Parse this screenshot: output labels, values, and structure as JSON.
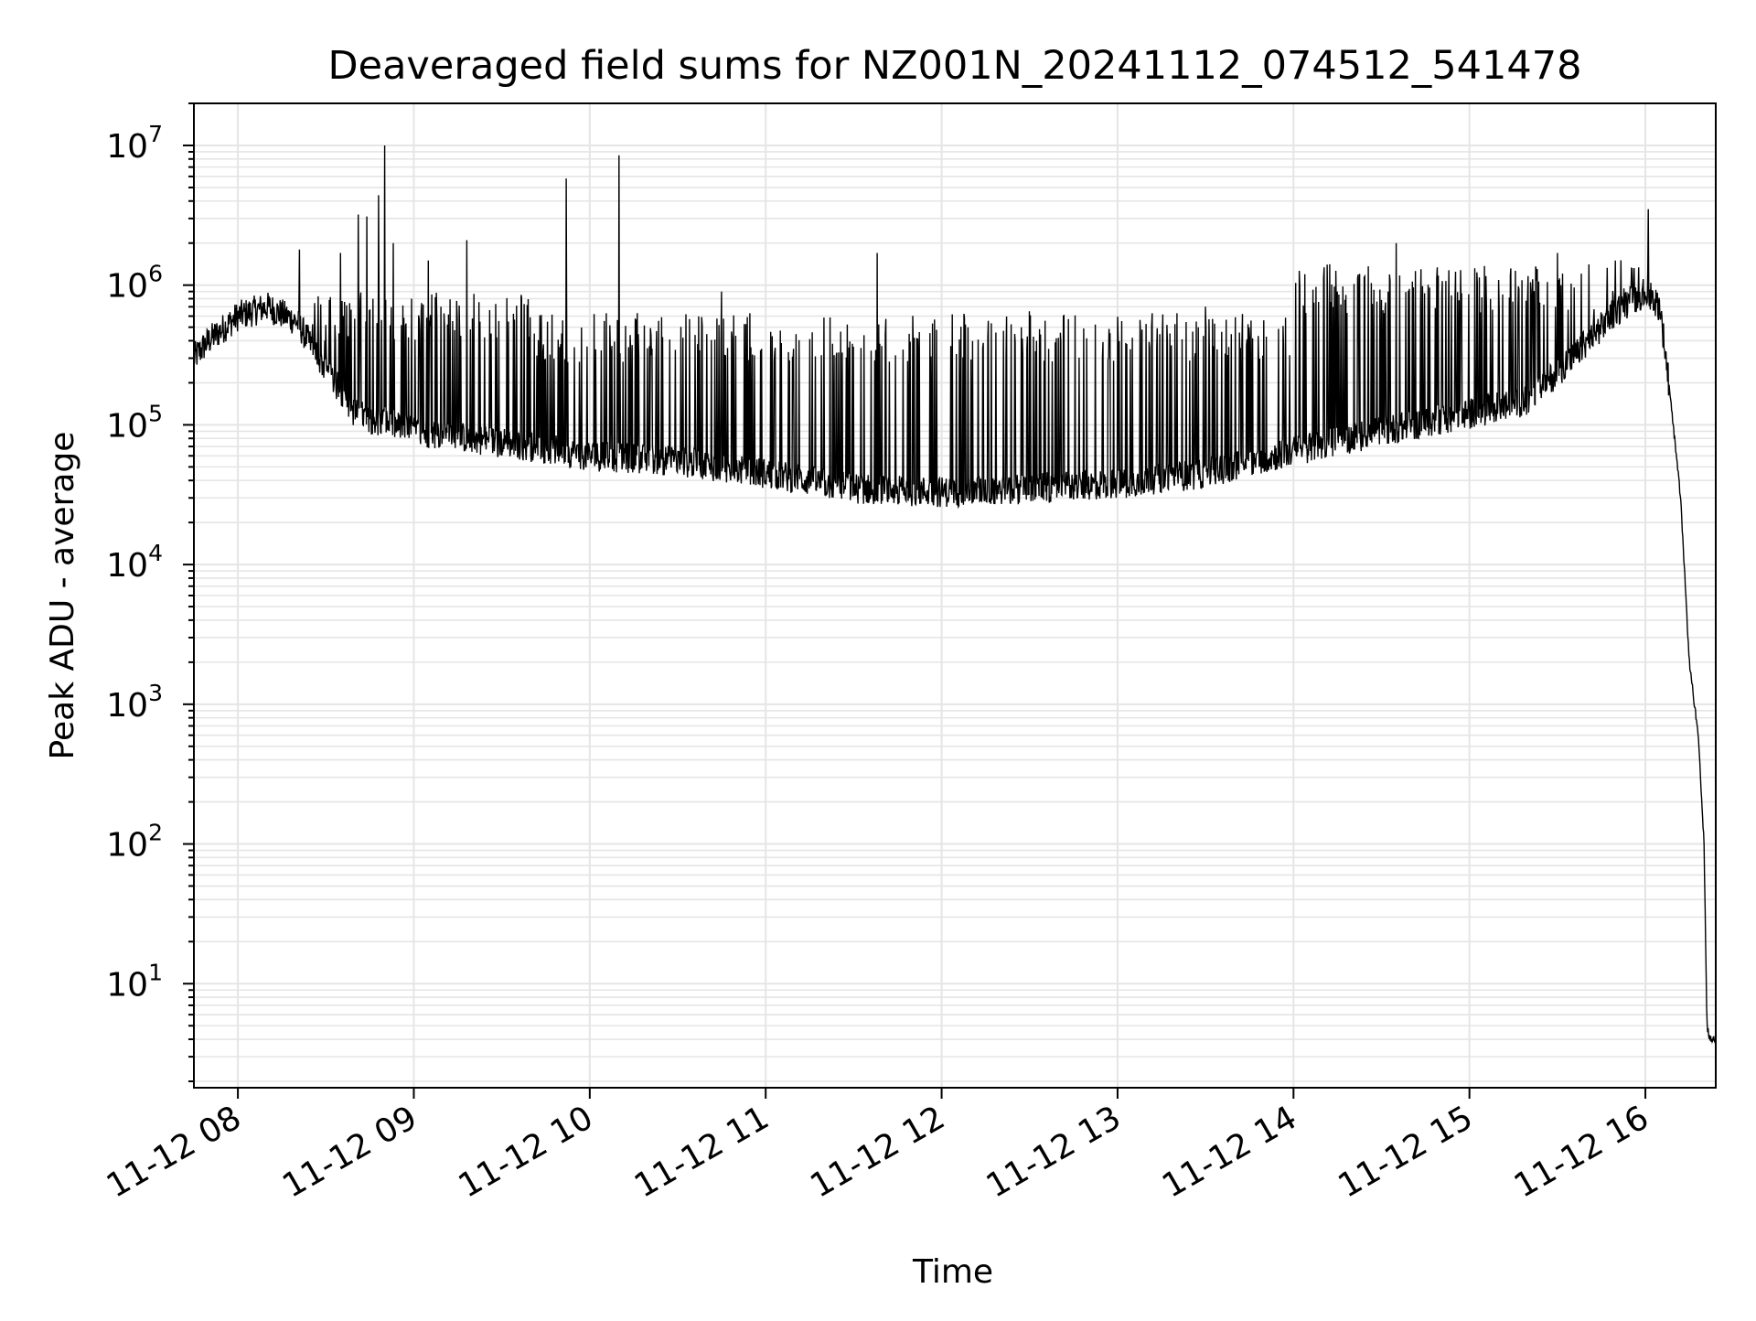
{
  "chart_data": {
    "type": "line",
    "title": "Deaveraged field sums for NZ001N_20241112_074512_541478",
    "xlabel": "Time",
    "ylabel": "Peak ADU - average",
    "yscale": "log",
    "ylim": [
      1.8,
      20000000
    ],
    "xlim": [
      "11-12 07:45",
      "11-12 16:24"
    ],
    "grid": true,
    "grid_minor": true,
    "line_color": "#000000",
    "grid_color": "#e5e5e5",
    "x_ticks": [
      "11-12 08",
      "11-12 09",
      "11-12 10",
      "11-12 11",
      "11-12 12",
      "11-12 13",
      "11-12 14",
      "11-12 15",
      "11-12 16"
    ],
    "y_ticks": [
      {
        "base": "10",
        "exp": "1",
        "value": 10
      },
      {
        "base": "10",
        "exp": "2",
        "value": 100
      },
      {
        "base": "10",
        "exp": "3",
        "value": 1000
      },
      {
        "base": "10",
        "exp": "4",
        "value": 10000
      },
      {
        "base": "10",
        "exp": "5",
        "value": 100000
      },
      {
        "base": "10",
        "exp": "6",
        "value": 1000000
      },
      {
        "base": "10",
        "exp": "7",
        "value": 10000000
      }
    ],
    "series": [
      {
        "baseline": {
          "x": [
            "11-12 07:45",
            "11-12 07:50",
            "11-12 08:00",
            "11-12 08:10",
            "11-12 08:20",
            "11-12 08:30",
            "11-12 08:40",
            "11-12 09:00",
            "11-12 09:30",
            "11-12 10:00",
            "11-12 10:30",
            "11-12 11:00",
            "11-12 11:30",
            "11-12 12:00",
            "11-12 12:30",
            "11-12 13:00",
            "11-12 13:30",
            "11-12 14:00",
            "11-12 14:30",
            "11-12 15:00",
            "11-12 15:20",
            "11-12 15:35",
            "11-12 15:50",
            "11-12 16:00",
            "11-12 16:05",
            "11-12 16:08",
            "11-12 16:12",
            "11-12 16:15",
            "11-12 16:18",
            "11-12 16:20",
            "11-12 16:21",
            "11-12 16:22",
            "11-12 16:24"
          ],
          "y": [
            300000,
            400000,
            600000,
            700000,
            550000,
            250000,
            120000,
            90000,
            75000,
            60000,
            55000,
            45000,
            35000,
            33000,
            35000,
            38000,
            45000,
            65000,
            90000,
            120000,
            150000,
            300000,
            650000,
            900000,
            700000,
            200000,
            30000,
            2000,
            600,
            100,
            5,
            4,
            4
          ]
        },
        "spikes": {
          "x": [
            "11-12 08:21",
            "11-12 08:35",
            "11-12 08:41",
            "11-12 08:44",
            "11-12 08:48",
            "11-12 08:50",
            "11-12 08:53",
            "11-12 09:05",
            "11-12 09:18",
            "11-12 09:52",
            "11-12 10:10",
            "11-12 10:45",
            "11-12 11:38",
            "11-12 12:30",
            "11-12 13:30",
            "11-12 14:15",
            "11-12 14:35",
            "11-12 15:30",
            "11-12 16:01"
          ],
          "y": [
            1800000,
            1700000,
            3200000,
            3100000,
            4400000,
            10000000,
            2000000,
            1500000,
            2100000,
            5800000,
            8500000,
            900000,
            1700000,
            650000,
            700000,
            900000,
            2000000,
            1700000,
            3500000
          ]
        }
      }
    ]
  }
}
